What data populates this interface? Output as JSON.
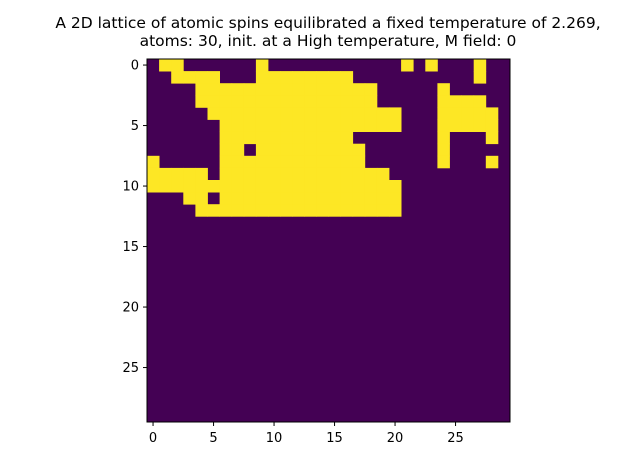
{
  "chart_data": {
    "type": "heatmap",
    "title_lines": [
      "A 2D lattice of atomic spins equilibrated a fixed temperature of 2.269,",
      "atoms: 30, init. at a High temperature, M field: 0"
    ],
    "xlabel": "",
    "ylabel": "",
    "grid": false,
    "x_ticks": [
      0,
      5,
      10,
      15,
      20,
      25
    ],
    "y_ticks": [
      0,
      5,
      10,
      15,
      20,
      25
    ],
    "xlim": [
      -0.5,
      29.5
    ],
    "ylim": [
      29.5,
      -0.5
    ],
    "colormap": {
      "spin_up": "#fde725",
      "spin_down": "#440154"
    },
    "grid_rows": [
      "011000000100000000000101000100",
      "001111000111111110000000000100",
      "000011111111111111100000100000",
      "000011111111111111100000111100",
      "000001111111111111111000111110",
      "000000111111111111111000111110",
      "000000111111111110000000100010",
      "000000110111111111000000100000",
      "100000111111111111000000100010",
      "111110111111111111110000000000",
      "111111111111111111111000000000",
      "000110111111111111111000000000",
      "000011111111111111111000000000",
      "000000000000000000000000000000",
      "000000000000000000000000000000",
      "000000000000000000000000000000",
      "000000000000000000000000000000",
      "000000000000000000000000000000",
      "000000000000000000000000000000",
      "000000000000000000000000000000",
      "000000000000000000000000000000",
      "000000000000000000000000000000",
      "000000000000000000000000000000",
      "000000000000000000000000000000",
      "000000000000000000000000000000",
      "000000000000000000000000000000",
      "000000000000000000000000000000",
      "000000000000000000000000000000",
      "000000000000000000000000000000",
      "000000000000000000000000000000"
    ]
  }
}
